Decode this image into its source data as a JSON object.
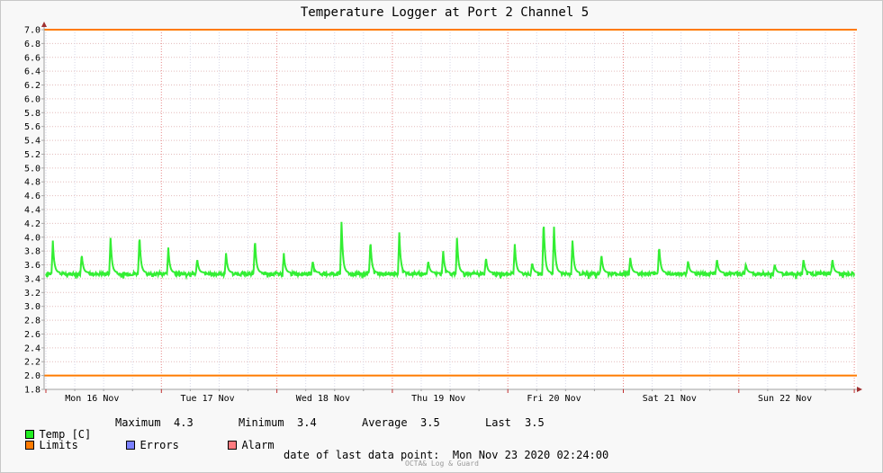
{
  "chart_data": {
    "type": "line",
    "title": "Temperature Logger at Port 2 Channel 5",
    "ylim": [
      1.8,
      7.0
    ],
    "yticks": [
      "7.0",
      "6.8",
      "6.6",
      "6.4",
      "6.2",
      "6.0",
      "5.8",
      "5.6",
      "5.4",
      "5.2",
      "5.0",
      "4.8",
      "4.6",
      "4.4",
      "4.2",
      "4.0",
      "3.8",
      "3.6",
      "3.4",
      "3.2",
      "3.0",
      "2.8",
      "2.6",
      "2.4",
      "2.2",
      "2.0",
      "1.8"
    ],
    "xlim": [
      0,
      7.3
    ],
    "day_labels": [
      "Mon 16 Nov",
      "Tue 17 Nov",
      "Wed 18 Nov",
      "Thu 19 Nov",
      "Fri 20 Nov",
      "Sat 21 Nov",
      "Sun 22 Nov"
    ],
    "grid": true,
    "limits": {
      "upper": 7.0,
      "lower": 2.0
    },
    "baseline": 3.47,
    "spikes": [
      [
        0.06,
        3.93
      ],
      [
        0.31,
        3.75
      ],
      [
        0.56,
        3.97
      ],
      [
        0.81,
        4.03
      ],
      [
        1.06,
        3.83
      ],
      [
        1.31,
        3.68
      ],
      [
        1.56,
        3.75
      ],
      [
        1.81,
        3.97
      ],
      [
        2.06,
        3.75
      ],
      [
        2.31,
        3.65
      ],
      [
        2.56,
        4.2
      ],
      [
        2.81,
        3.95
      ],
      [
        3.06,
        4.05
      ],
      [
        3.31,
        3.65
      ],
      [
        3.44,
        3.78
      ],
      [
        3.56,
        3.97
      ],
      [
        3.81,
        3.7
      ],
      [
        4.06,
        3.9
      ],
      [
        4.21,
        3.62
      ],
      [
        4.31,
        4.25
      ],
      [
        4.4,
        4.15
      ],
      [
        4.56,
        3.95
      ],
      [
        4.81,
        3.75
      ],
      [
        5.06,
        3.7
      ],
      [
        5.31,
        3.87
      ],
      [
        5.56,
        3.65
      ],
      [
        5.81,
        3.68
      ],
      [
        6.06,
        3.6
      ],
      [
        6.31,
        3.6
      ],
      [
        6.56,
        3.67
      ],
      [
        6.81,
        3.68
      ]
    ],
    "series": [
      {
        "name": "Temp [C]",
        "color": "#33ee33"
      }
    ]
  },
  "legend": {
    "temp": {
      "label": "Temp [C]",
      "color": "#22ee22"
    },
    "limits": {
      "label": "Limits",
      "color": "#ff7b00"
    },
    "errors": {
      "label": "Errors",
      "color": "#7a80ff"
    },
    "alarm": {
      "label": "Alarm",
      "color": "#ff7b80"
    }
  },
  "stats": {
    "maximum_label": "Maximum",
    "maximum_value": "4.3",
    "minimum_label": "Minimum",
    "minimum_value": "3.4",
    "average_label": "Average",
    "average_value": "3.5",
    "last_label": "Last",
    "last_value": "3.5"
  },
  "footer": {
    "last_point_label": "date of last data point:",
    "last_point_value": "Mon Nov 23 2020 02:24:00",
    "watermark": "OCTA& Log & Guard"
  }
}
